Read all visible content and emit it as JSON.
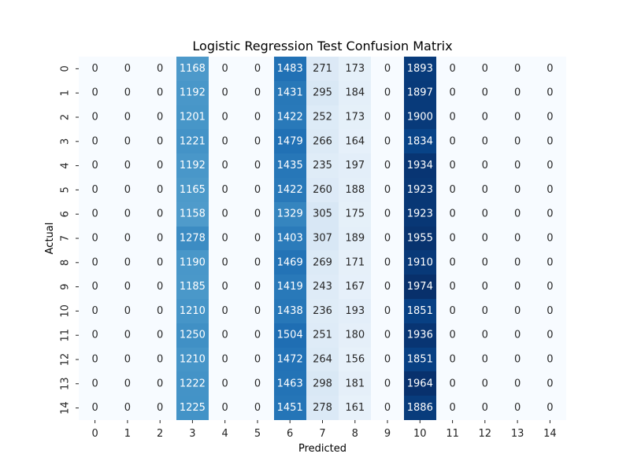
{
  "chart_data": {
    "type": "heatmap",
    "title": "Logistic Regression Test Confusion Matrix",
    "xlabel": "Predicted",
    "ylabel": "Actual",
    "x_categories": [
      "0",
      "1",
      "2",
      "3",
      "4",
      "5",
      "6",
      "7",
      "8",
      "9",
      "10",
      "11",
      "12",
      "13",
      "14"
    ],
    "y_categories": [
      "0",
      "1",
      "2",
      "3",
      "4",
      "5",
      "6",
      "7",
      "8",
      "9",
      "10",
      "11",
      "12",
      "13",
      "14"
    ],
    "values": [
      [
        0,
        0,
        0,
        1168,
        0,
        0,
        1483,
        271,
        173,
        0,
        1893,
        0,
        0,
        0,
        0
      ],
      [
        0,
        0,
        0,
        1192,
        0,
        0,
        1431,
        295,
        184,
        0,
        1897,
        0,
        0,
        0,
        0
      ],
      [
        0,
        0,
        0,
        1201,
        0,
        0,
        1422,
        252,
        173,
        0,
        1900,
        0,
        0,
        0,
        0
      ],
      [
        0,
        0,
        0,
        1221,
        0,
        0,
        1479,
        266,
        164,
        0,
        1834,
        0,
        0,
        0,
        0
      ],
      [
        0,
        0,
        0,
        1192,
        0,
        0,
        1435,
        235,
        197,
        0,
        1934,
        0,
        0,
        0,
        0
      ],
      [
        0,
        0,
        0,
        1165,
        0,
        0,
        1422,
        260,
        188,
        0,
        1923,
        0,
        0,
        0,
        0
      ],
      [
        0,
        0,
        0,
        1158,
        0,
        0,
        1329,
        305,
        175,
        0,
        1923,
        0,
        0,
        0,
        0
      ],
      [
        0,
        0,
        0,
        1278,
        0,
        0,
        1403,
        307,
        189,
        0,
        1955,
        0,
        0,
        0,
        0
      ],
      [
        0,
        0,
        0,
        1190,
        0,
        0,
        1469,
        269,
        171,
        0,
        1910,
        0,
        0,
        0,
        0
      ],
      [
        0,
        0,
        0,
        1185,
        0,
        0,
        1419,
        243,
        167,
        0,
        1974,
        0,
        0,
        0,
        0
      ],
      [
        0,
        0,
        0,
        1210,
        0,
        0,
        1438,
        236,
        193,
        0,
        1851,
        0,
        0,
        0,
        0
      ],
      [
        0,
        0,
        0,
        1250,
        0,
        0,
        1504,
        251,
        180,
        0,
        1936,
        0,
        0,
        0,
        0
      ],
      [
        0,
        0,
        0,
        1210,
        0,
        0,
        1472,
        264,
        156,
        0,
        1851,
        0,
        0,
        0,
        0
      ],
      [
        0,
        0,
        0,
        1222,
        0,
        0,
        1463,
        298,
        181,
        0,
        1964,
        0,
        0,
        0,
        0
      ],
      [
        0,
        0,
        0,
        1225,
        0,
        0,
        1451,
        278,
        161,
        0,
        1886,
        0,
        0,
        0,
        0
      ]
    ],
    "colormap": "Blues",
    "colormap_stops": [
      "#f7fbff",
      "#deebf7",
      "#c6dbef",
      "#9ecae1",
      "#6baed6",
      "#4292c6",
      "#2171b5",
      "#08519c",
      "#08306b"
    ],
    "colorbar": false,
    "grid": false,
    "annotated": true
  }
}
